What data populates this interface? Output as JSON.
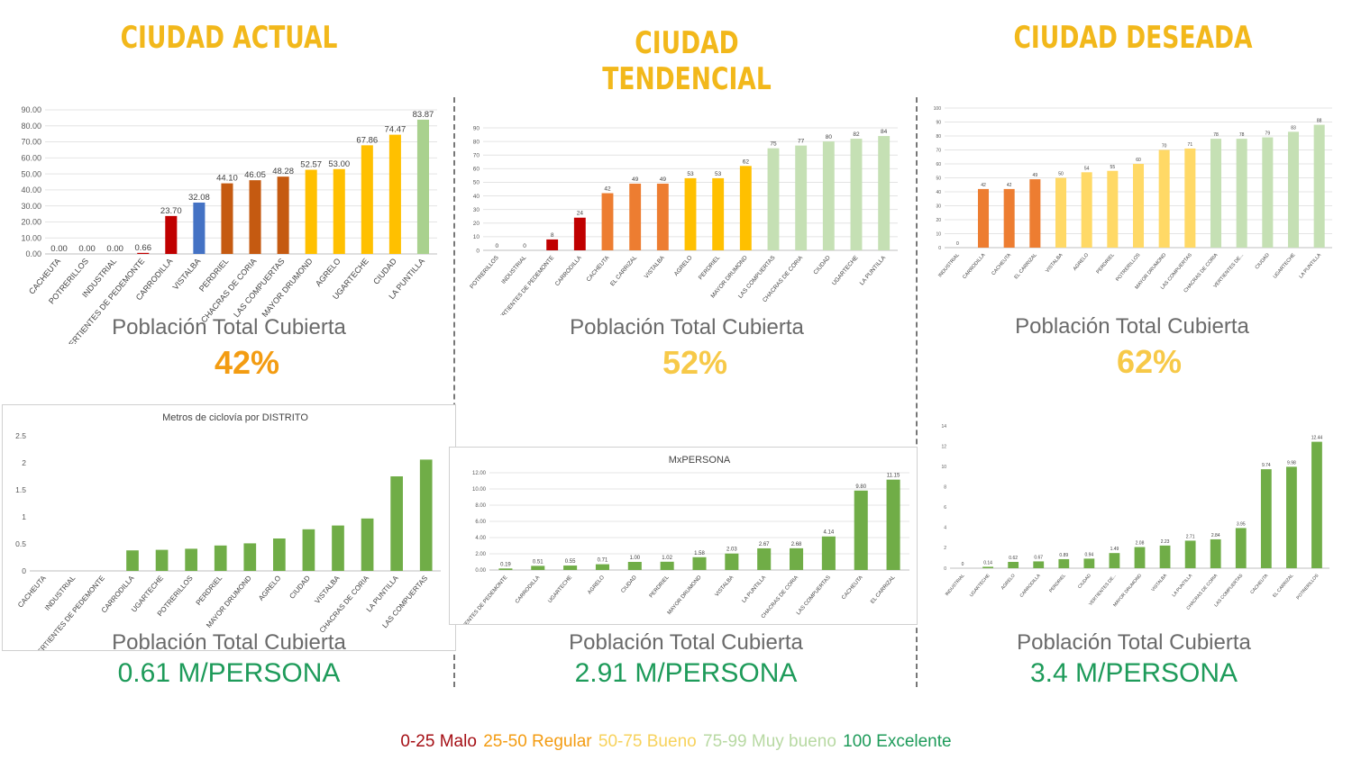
{
  "columns": [
    {
      "title": "CIUDAD ACTUAL",
      "caption_top": "Población Total Cubierta",
      "percent": "42%",
      "caption_bottom": "Población Total Cubierta",
      "meters": "0.61 M/PERSONA"
    },
    {
      "title": "CIUDAD TENDENCIAL",
      "caption_top": "Población Total Cubierta",
      "percent": "52%",
      "caption_bottom": "Población Total Cubierta",
      "meters": "2.91 M/PERSONA"
    },
    {
      "title": "CIUDAD DESEADA",
      "caption_top": "Población Total Cubierta",
      "percent": "62%",
      "caption_bottom": "Población Total Cubierta",
      "meters": "3.4 M/PERSONA"
    }
  ],
  "colors": {
    "title": "#f2b81b",
    "percent_actual": "#f39c12",
    "percent_tendencial": "#f7c948",
    "percent_deseada": "#f7c948",
    "meters": "#1e9b5a",
    "malo": "#c00000",
    "regular_dark": "#c55a11",
    "regular": "#ed7d31",
    "bueno": "#ffc000",
    "bueno_light": "#ffd966",
    "muy_bueno": "#c5e0b4",
    "bar_green": "#70ad47"
  },
  "legend": [
    {
      "text": "0-25 Malo",
      "color": "#a50f15"
    },
    {
      "text": "25-50 Regular",
      "color": "#f39c12"
    },
    {
      "text": "50-75 Bueno",
      "color": "#f7d25c"
    },
    {
      "text": "75-99 Muy bueno",
      "color": "#b8d9a3"
    },
    {
      "text": "100 Excelente",
      "color": "#1e9b5a"
    }
  ],
  "chart_data": [
    {
      "type": "bar",
      "id": "actual-coverage",
      "categories": [
        "CACHEUTA",
        "POTRERILLOS",
        "INDUSTRIAL",
        "VERTIENTES DE PEDEMONTE",
        "CARRODILLA",
        "VISTALBA",
        "PERDRIEL",
        "CHACRAS DE CORIA",
        "LAS COMPUERTAS",
        "MAYOR DRUMOND",
        "AGRELO",
        "UGARTECHE",
        "CIUDAD",
        "LA PUNTILLA"
      ],
      "values": [
        0.0,
        0.0,
        0.0,
        0.66,
        23.7,
        32.08,
        44.1,
        46.05,
        48.28,
        52.57,
        53.0,
        67.86,
        74.47,
        83.87
      ],
      "labels": [
        "0.00",
        "0.00",
        "0.00",
        "0.66",
        "23.70",
        "32.08",
        "44.10",
        "46.05",
        "48.28",
        "52.57",
        "53.00",
        "67.86",
        "74.47",
        "83.87"
      ],
      "bar_colors": [
        "#c00000",
        "#c00000",
        "#c00000",
        "#c00000",
        "#c00000",
        "#4472c4",
        "#c55a11",
        "#c55a11",
        "#c55a11",
        "#ffc000",
        "#ffc000",
        "#ffc000",
        "#ffc000",
        "#a9d18e"
      ],
      "yticks": [
        "0.00",
        "10.00",
        "20.00",
        "30.00",
        "40.00",
        "50.00",
        "60.00",
        "70.00",
        "80.00",
        "90.00"
      ],
      "ylim": [
        0,
        90
      ],
      "grid": true,
      "title": ""
    },
    {
      "type": "bar",
      "id": "tendencial-coverage",
      "categories": [
        "POTRERILLOS",
        "INDUSTRIAL",
        "VERTIENTES DE PEDEMONTE",
        "CARRODILLA",
        "CACHEUTA",
        "EL CARRIZAL",
        "VISTALBA",
        "AGRELO",
        "PERDRIEL",
        "MAYOR DRUMOND",
        "LAS COMPUERTAS",
        "CHACRAS DE CORIA",
        "CIUDAD",
        "UGARTECHE",
        "LA PUNTILLA"
      ],
      "values": [
        0,
        0,
        8,
        24,
        42,
        49,
        49,
        53,
        53,
        62,
        75,
        77,
        80,
        82,
        84
      ],
      "labels": [
        "0",
        "0",
        "8",
        "24",
        "42",
        "49",
        "49",
        "53",
        "53",
        "62",
        "75",
        "77",
        "80",
        "82",
        "84"
      ],
      "bar_colors": [
        "#c00000",
        "#c00000",
        "#c00000",
        "#c00000",
        "#ed7d31",
        "#ed7d31",
        "#ed7d31",
        "#ffc000",
        "#ffc000",
        "#ffc000",
        "#c5e0b4",
        "#c5e0b4",
        "#c5e0b4",
        "#c5e0b4",
        "#c5e0b4"
      ],
      "yticks": [
        "0",
        "10",
        "20",
        "30",
        "40",
        "50",
        "60",
        "70",
        "80",
        "90"
      ],
      "ylim": [
        0,
        90
      ],
      "grid": true,
      "title": ""
    },
    {
      "type": "bar",
      "id": "deseada-coverage",
      "categories": [
        "INDUSTRIAL",
        "CARRODILLA",
        "CACHEUTA",
        "EL CARRIZAL",
        "VISTALBA",
        "AGRELO",
        "PERDRIEL",
        "POTRERILLOS",
        "MAYOR DRUMOND",
        "LAS COMPUERTAS",
        "CHACRAS DE CORIA",
        "VERTIENTES DE...",
        "CIUDAD",
        "UGARTECHE",
        "LA PUNTILLA"
      ],
      "values": [
        0,
        42,
        42,
        49,
        50,
        54,
        55,
        60,
        70,
        71,
        78,
        78,
        79,
        83,
        88
      ],
      "labels": [
        "0",
        "42",
        "42",
        "49",
        "50",
        "54",
        "55",
        "60",
        "70",
        "71",
        "78",
        "78",
        "79",
        "83",
        "88"
      ],
      "bar_colors": [
        "#ed7d31",
        "#ed7d31",
        "#ed7d31",
        "#ed7d31",
        "#ffd966",
        "#ffd966",
        "#ffd966",
        "#ffd966",
        "#ffd966",
        "#ffd966",
        "#c5e0b4",
        "#c5e0b4",
        "#c5e0b4",
        "#c5e0b4",
        "#c5e0b4"
      ],
      "yticks": [
        "0",
        "10",
        "20",
        "30",
        "40",
        "50",
        "60",
        "70",
        "80",
        "90",
        "100"
      ],
      "ylim": [
        0,
        100
      ],
      "grid": true,
      "title": ""
    },
    {
      "type": "bar",
      "id": "actual-cycleway",
      "title": "Metros de ciclovía por DISTRITO",
      "categories": [
        "CACHEUTA",
        "INDUSTRIAL",
        "VERTIENTES DE PEDEMONTE",
        "CARRODILLA",
        "UGARTECHE",
        "POTRERILLOS",
        "PERDRIEL",
        "MAYOR DRUMOND",
        "AGRELO",
        "CIUDAD",
        "VISTALBA",
        "CHACRAS DE CORIA",
        "LA PUNTILLA",
        "LAS COMPUERTAS"
      ],
      "values": [
        0,
        0,
        0,
        0.38,
        0.39,
        0.41,
        0.47,
        0.51,
        0.6,
        0.77,
        0.84,
        0.97,
        1.75,
        2.06
      ],
      "labels": [],
      "bar_colors": [
        "#70ad47"
      ],
      "yticks": [
        "0",
        "0.5",
        "1",
        "1.5",
        "2",
        "2.5"
      ],
      "ylim": [
        0,
        2.5
      ],
      "grid": false
    },
    {
      "type": "bar",
      "id": "tendencial-cycleway",
      "title": "MxPERSONA",
      "categories": [
        "VERTIENTES DE PEDEMONTE",
        "CARRODILLA",
        "UGARTECHE",
        "AGRELO",
        "CIUDAD",
        "PERDRIEL",
        "MAYOR DRUMOND",
        "VISTALBA",
        "LA PUNTILLA",
        "CHACRAS DE CORIA",
        "LAS COMPUERTAS",
        "CACHEUTA",
        "EL CARRIZAL"
      ],
      "values": [
        0.19,
        0.51,
        0.55,
        0.71,
        1.0,
        1.02,
        1.58,
        2.03,
        2.67,
        2.68,
        4.14,
        9.8,
        11.15
      ],
      "labels": [
        "0.19",
        "0.51",
        "0.55",
        "0.71",
        "1.00",
        "1.02",
        "1.58",
        "2.03",
        "2.67",
        "2.68",
        "4.14",
        "9.80",
        "11.15"
      ],
      "bar_colors": [
        "#70ad47"
      ],
      "yticks": [
        "0.00",
        "2.00",
        "4.00",
        "6.00",
        "8.00",
        "10.00",
        "12.00"
      ],
      "ylim": [
        0,
        12
      ],
      "grid": true
    },
    {
      "type": "bar",
      "id": "deseada-cycleway",
      "title": "",
      "categories": [
        "INDUSTRIAL",
        "UGARTECHE",
        "AGRELO",
        "CARRODILLA",
        "PERDRIEL",
        "CIUDAD",
        "VERTIENTES DE...",
        "MAYOR DRUMOND",
        "VISTALBA",
        "LA PUNTILLA",
        "CHACRAS DE CORIA",
        "LAS COMPUERTAS",
        "CACHEUTA",
        "EL CARRIZAL",
        "POTRERILLOS"
      ],
      "values": [
        0,
        0.14,
        0.62,
        0.67,
        0.89,
        0.94,
        1.49,
        2.08,
        2.23,
        2.71,
        2.84,
        3.95,
        9.74,
        9.98,
        12.44
      ],
      "labels": [
        "0",
        "0.14",
        "0.62",
        "0.67",
        "0.89",
        "0.94",
        "1.49",
        "2.08",
        "2.23",
        "2.71",
        "2.84",
        "3.95",
        "9.74",
        "9.98",
        "12.44"
      ],
      "bar_colors": [
        "#70ad47"
      ],
      "yticks": [
        "0",
        "2",
        "4",
        "6",
        "8",
        "10",
        "12",
        "14"
      ],
      "ylim": [
        0,
        14
      ],
      "grid": false
    }
  ]
}
